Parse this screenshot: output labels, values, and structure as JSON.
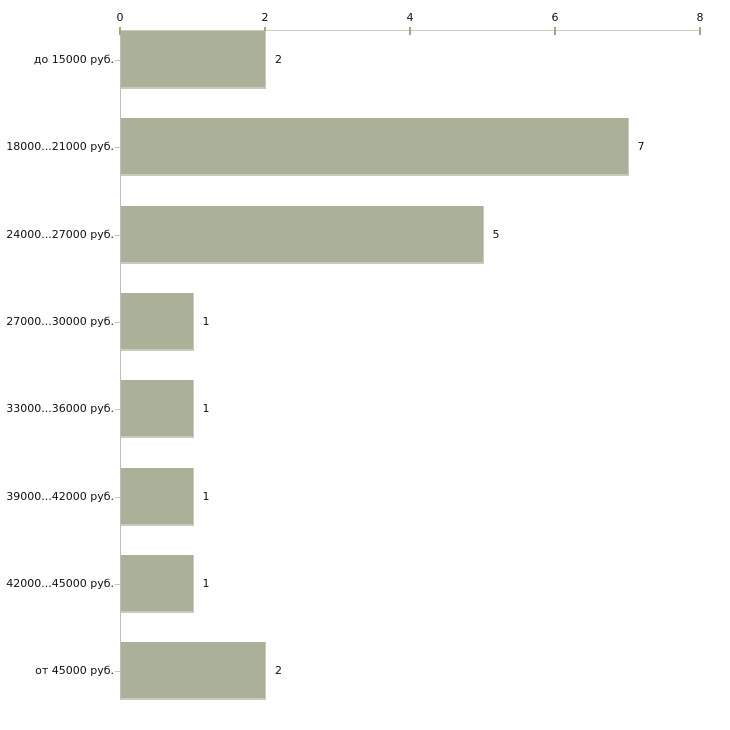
{
  "chart_data": {
    "type": "bar",
    "orientation": "horizontal",
    "title": "",
    "xlabel": "",
    "ylabel": "",
    "categories": [
      "до 15000 руб.",
      "18000...21000 руб.",
      "24000...27000 руб.",
      "27000...30000 руб.",
      "33000...36000 руб.",
      "39000...42000 руб.",
      "42000...45000 руб.",
      "от 45000 руб."
    ],
    "values": [
      2,
      7,
      5,
      1,
      1,
      1,
      1,
      2
    ],
    "value_labels": [
      "2",
      "7",
      "5",
      "1",
      "1",
      "1",
      "1",
      "2"
    ],
    "x_ticks": [
      "0",
      "2",
      "4",
      "6",
      "8"
    ],
    "xlim": [
      0,
      8
    ],
    "grid": false,
    "legend": false,
    "axis_position": "top",
    "colors": {
      "bar": "#abb098",
      "axis": "#c9c9c3",
      "tick": "#a9a67c",
      "text": "#111111",
      "background": "#ffffff"
    }
  }
}
